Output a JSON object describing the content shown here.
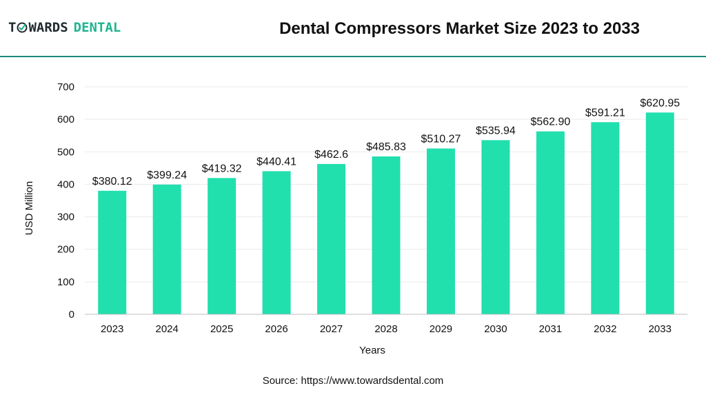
{
  "header": {
    "logo_part1": "T",
    "logo_part2": "WARDS",
    "logo_part3": "DENTAL",
    "title": "Dental Compressors Market Size 2023 to 2033"
  },
  "colors": {
    "bar": "#22dfae",
    "brand_teal": "#1fb58f",
    "divider": "#1a8a78",
    "grid": "#e9e9e9"
  },
  "chart_data": {
    "type": "bar",
    "title": "Dental Compressors Market Size 2023 to 2033",
    "xlabel": "Years",
    "ylabel": "USD Million",
    "ylim": [
      0,
      700
    ],
    "yticks": [
      0,
      100,
      200,
      300,
      400,
      500,
      600,
      700
    ],
    "grid": true,
    "categories": [
      "2023",
      "2024",
      "2025",
      "2026",
      "2027",
      "2028",
      "2029",
      "2030",
      "2031",
      "2032",
      "2033"
    ],
    "values": [
      380.12,
      399.24,
      419.32,
      440.41,
      462.6,
      485.83,
      510.27,
      535.94,
      562.9,
      591.21,
      620.95
    ],
    "data_labels": [
      "$380.12",
      "$399.24",
      "$419.32",
      "$440.41",
      "$462.6",
      "$485.83",
      "$510.27",
      "$535.94",
      "$562.90",
      "$591.21",
      "$620.95"
    ]
  },
  "footer": {
    "source": "Source: https://www.towardsdental.com"
  }
}
